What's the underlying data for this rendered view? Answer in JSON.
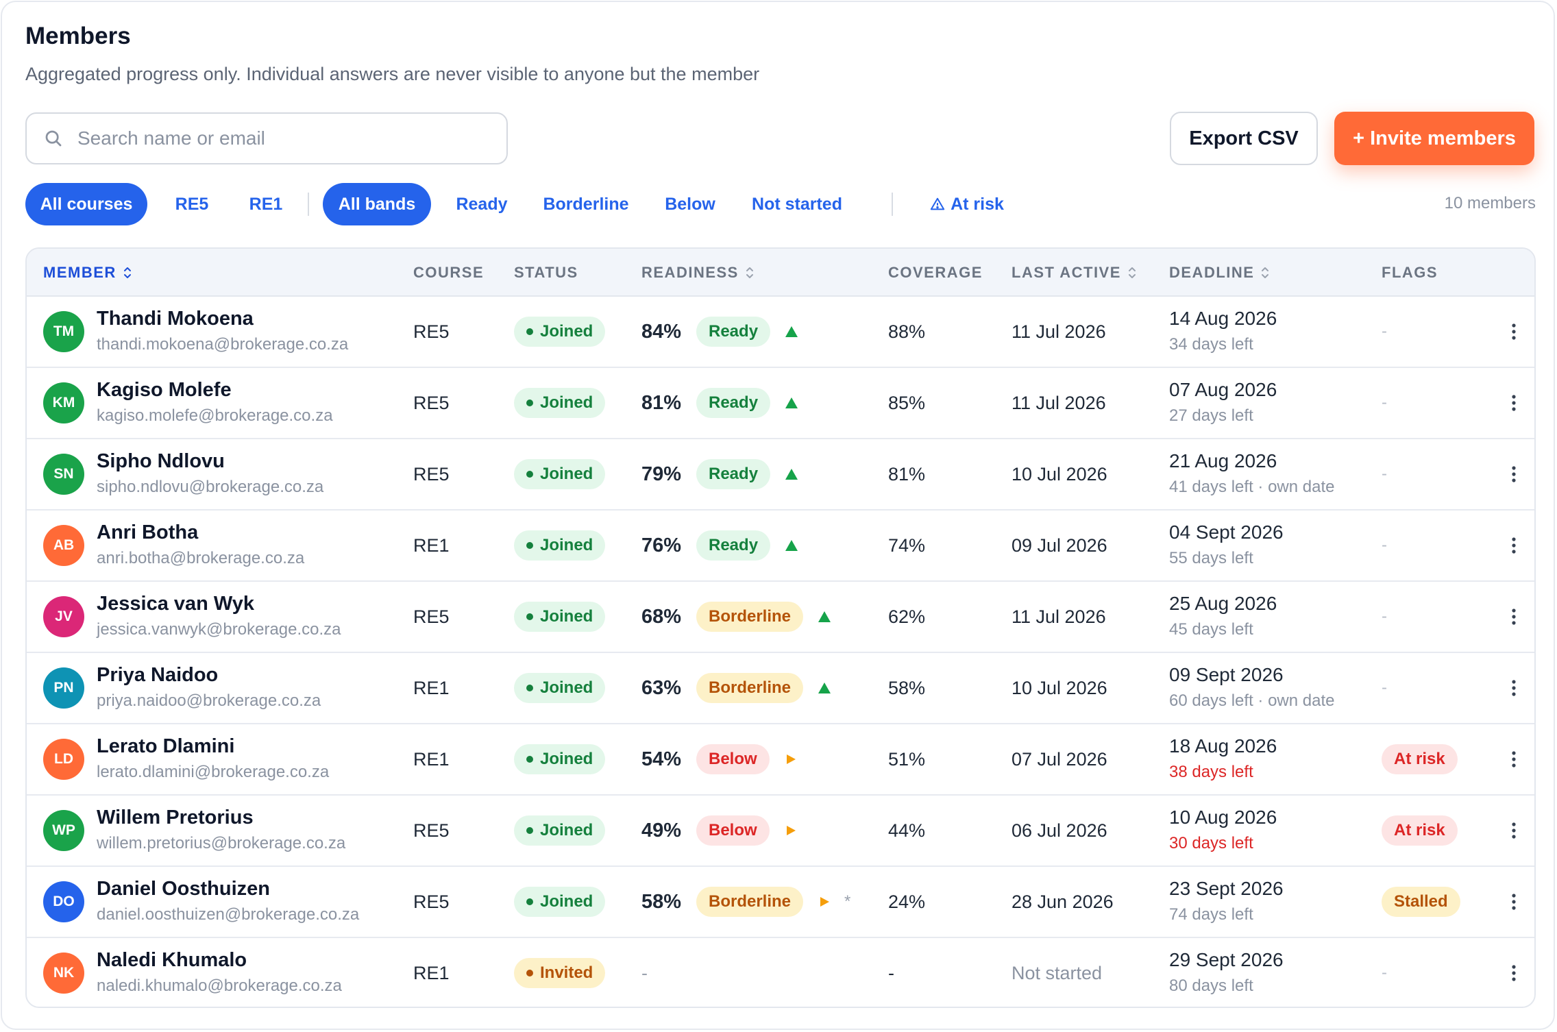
{
  "header": {
    "title": "Members",
    "subtitle": "Aggregated progress only. Individual answers are never visible to anyone but the member"
  },
  "search": {
    "placeholder": "Search name or email",
    "value": ""
  },
  "actions": {
    "export_label": "Export CSV",
    "invite_label": "+ Invite members"
  },
  "filters": {
    "courses": [
      "All courses",
      "RE5",
      "RE1"
    ],
    "bands": [
      "All bands",
      "Ready",
      "Borderline",
      "Below",
      "Not started"
    ],
    "at_risk": "At risk",
    "active_course": "All courses",
    "active_band": "All bands",
    "count_label": "10 members"
  },
  "columns": {
    "member": "MEMBER",
    "course": "COURSE",
    "status": "STATUS",
    "readiness": "READINESS",
    "coverage": "COVERAGE",
    "last_active": "LAST ACTIVE",
    "deadline": "DEADLINE",
    "flags": "FLAGS"
  },
  "colors": {
    "accent": "#2563eb",
    "invite": "#ff6a37",
    "ready": "#15803d",
    "borderline": "#b45309",
    "below": "#dc2626"
  },
  "members": [
    {
      "initials": "TM",
      "avatar_color": "#1aa34a",
      "name": "Thandi Mokoena",
      "email": "thandi.mokoena@brokerage.co.za",
      "course": "RE5",
      "status": "Joined",
      "readiness": "84%",
      "band": "Ready",
      "trend": "up",
      "coverage": "88%",
      "last_active": "11 Jul 2026",
      "deadline": "14 Aug 2026",
      "days_left": "34 days left",
      "urgent": false,
      "flag": "-"
    },
    {
      "initials": "KM",
      "avatar_color": "#1aa34a",
      "name": "Kagiso Molefe",
      "email": "kagiso.molefe@brokerage.co.za",
      "course": "RE5",
      "status": "Joined",
      "readiness": "81%",
      "band": "Ready",
      "trend": "up",
      "coverage": "85%",
      "last_active": "11 Jul 2026",
      "deadline": "07 Aug 2026",
      "days_left": "27 days left",
      "urgent": false,
      "flag": "-"
    },
    {
      "initials": "SN",
      "avatar_color": "#1aa34a",
      "name": "Sipho Ndlovu",
      "email": "sipho.ndlovu@brokerage.co.za",
      "course": "RE5",
      "status": "Joined",
      "readiness": "79%",
      "band": "Ready",
      "trend": "up",
      "coverage": "81%",
      "last_active": "10 Jul 2026",
      "deadline": "21 Aug 2026",
      "days_left": "41 days left · own date",
      "urgent": false,
      "flag": "-"
    },
    {
      "initials": "AB",
      "avatar_color": "#ff6a37",
      "name": "Anri Botha",
      "email": "anri.botha@brokerage.co.za",
      "course": "RE1",
      "status": "Joined",
      "readiness": "76%",
      "band": "Ready",
      "trend": "up",
      "coverage": "74%",
      "last_active": "09 Jul 2026",
      "deadline": "04 Sept 2026",
      "days_left": "55 days left",
      "urgent": false,
      "flag": "-"
    },
    {
      "initials": "JV",
      "avatar_color": "#db2777",
      "name": "Jessica van Wyk",
      "email": "jessica.vanwyk@brokerage.co.za",
      "course": "RE5",
      "status": "Joined",
      "readiness": "68%",
      "band": "Borderline",
      "trend": "up",
      "coverage": "62%",
      "last_active": "11 Jul 2026",
      "deadline": "25 Aug 2026",
      "days_left": "45 days left",
      "urgent": false,
      "flag": "-"
    },
    {
      "initials": "PN",
      "avatar_color": "#0e93b4",
      "name": "Priya Naidoo",
      "email": "priya.naidoo@brokerage.co.za",
      "course": "RE1",
      "status": "Joined",
      "readiness": "63%",
      "band": "Borderline",
      "trend": "up",
      "coverage": "58%",
      "last_active": "10 Jul 2026",
      "deadline": "09 Sept 2026",
      "days_left": "60 days left · own date",
      "urgent": false,
      "flag": "-"
    },
    {
      "initials": "LD",
      "avatar_color": "#ff6a37",
      "name": "Lerato Dlamini",
      "email": "lerato.dlamini@brokerage.co.za",
      "course": "RE1",
      "status": "Joined",
      "readiness": "54%",
      "band": "Below",
      "trend": "flat",
      "coverage": "51%",
      "last_active": "07 Jul 2026",
      "deadline": "18 Aug 2026",
      "days_left": "38 days left",
      "urgent": true,
      "flag": "At risk"
    },
    {
      "initials": "WP",
      "avatar_color": "#1aa34a",
      "name": "Willem Pretorius",
      "email": "willem.pretorius@brokerage.co.za",
      "course": "RE5",
      "status": "Joined",
      "readiness": "49%",
      "band": "Below",
      "trend": "flat",
      "coverage": "44%",
      "last_active": "06 Jul 2026",
      "deadline": "10 Aug 2026",
      "days_left": "30 days left",
      "urgent": true,
      "flag": "At risk"
    },
    {
      "initials": "DO",
      "avatar_color": "#2563eb",
      "name": "Daniel Oosthuizen",
      "email": "daniel.oosthuizen@brokerage.co.za",
      "course": "RE5",
      "status": "Joined",
      "readiness": "58%",
      "band": "Borderline",
      "trend": "flat",
      "note": "*",
      "coverage": "24%",
      "last_active": "28 Jun 2026",
      "deadline": "23 Sept 2026",
      "days_left": "74 days left",
      "urgent": false,
      "flag": "Stalled"
    },
    {
      "initials": "NK",
      "avatar_color": "#ff6a37",
      "name": "Naledi Khumalo",
      "email": "naledi.khumalo@brokerage.co.za",
      "course": "RE1",
      "status": "Invited",
      "readiness": "-",
      "band": "",
      "trend": "",
      "coverage": "-",
      "last_active": "Not started",
      "deadline": "29 Sept 2026",
      "days_left": "80 days left",
      "urgent": false,
      "flag": "-"
    }
  ]
}
